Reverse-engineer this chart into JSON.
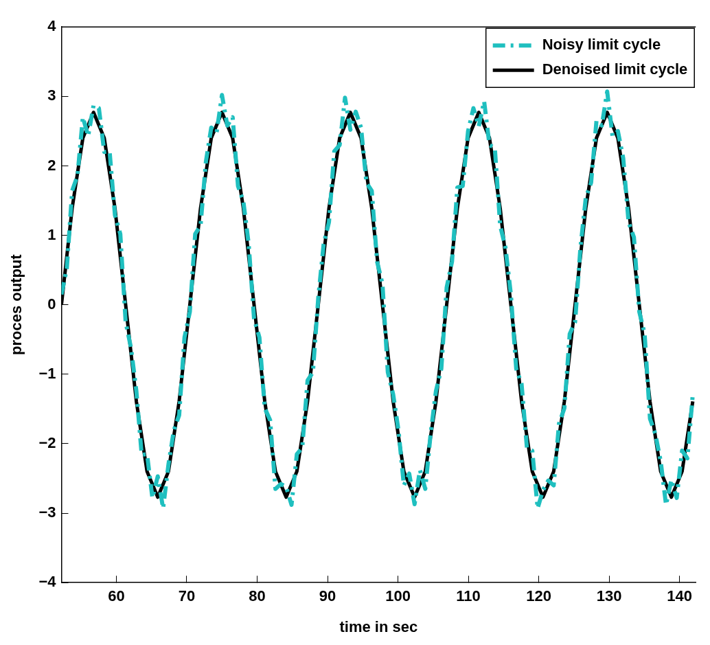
{
  "chart_data": {
    "type": "line",
    "xlabel": "time in sec",
    "ylabel": "proces output",
    "xlim": [
      52.2,
      142.3
    ],
    "xticks": [
      60,
      70,
      80,
      90,
      100,
      110,
      120,
      130,
      140
    ],
    "ylim": [
      -4,
      4
    ],
    "yticks": [
      -4,
      -3,
      -2,
      -1,
      0,
      1,
      2,
      3,
      4
    ],
    "grid": false,
    "legend": "top right",
    "marker": "none",
    "series": [
      {
        "name": "Noisy limit cycle",
        "color": "#1fbfbf",
        "line_style": "dashed",
        "x": [
          52.2,
          52.96,
          53.72,
          54.48,
          55.24,
          56,
          56.76,
          57.52,
          58.28,
          59.04,
          59.8,
          60.56,
          61.32,
          62.08,
          62.84,
          63.6,
          64.36,
          65.12,
          65.88,
          66.64,
          67.4,
          68.16,
          68.92,
          69.68,
          70.44,
          71.2,
          71.96,
          72.72,
          73.48,
          74.24,
          75,
          75.76,
          76.52,
          77.28,
          78.04,
          78.8,
          79.56,
          80.32,
          81.08,
          81.84,
          82.6,
          83.36,
          84.12,
          84.88,
          85.64,
          86.4,
          87.16,
          87.92,
          88.68,
          89.44,
          90.2,
          90.96,
          91.72,
          92.48,
          93.24,
          94,
          94.76,
          95.52,
          96.28,
          97.04,
          97.8,
          98.56,
          99.32,
          100.08,
          100.84,
          101.6,
          102.36,
          103.12,
          103.88,
          104.64,
          105.4,
          106.16,
          106.92,
          107.68,
          108.44,
          109.2,
          109.96,
          110.72,
          111.48,
          112.24,
          113,
          113.76,
          114.52,
          115.28,
          116.04,
          116.8,
          117.56,
          118.32,
          119.08,
          119.84,
          120.6,
          121.36,
          122.12,
          122.88,
          123.64,
          124.4,
          125.16,
          125.92,
          126.68,
          127.44,
          128.2,
          128.96,
          129.72,
          130.48,
          131.24,
          132,
          132.76,
          133.52,
          134.28,
          135.04,
          135.8,
          136.56,
          137.32,
          138.08,
          138.84,
          139.6,
          140.36,
          141.12,
          141.88
        ],
        "values": [
          0.15,
          0.52,
          1.64,
          1.86,
          2.7,
          2.43,
          2.87,
          2.83,
          2.2,
          2.21,
          1.29,
          1.02,
          -0.25,
          -0.62,
          -1.24,
          -2.16,
          -2.15,
          -2.78,
          -2.47,
          -2.93,
          -2.3,
          -1.81,
          -1.59,
          -0.47,
          -0.1,
          1.02,
          1.14,
          2.06,
          2.55,
          2.48,
          3.02,
          2.58,
          2.7,
          1.71,
          1.49,
          0.87,
          -0.2,
          -0.47,
          -1.49,
          -1.66,
          -2.65,
          -2.58,
          -2.62,
          -2.88,
          -2.15,
          -2.06,
          -1.09,
          -0.97,
          0.1,
          0.87,
          1.19,
          2.21,
          2.3,
          2.98,
          2.52,
          2.78,
          2.55,
          1.76,
          1.64,
          0.62,
          0.3,
          -0.97,
          -1.29,
          -1.81,
          -2.6,
          -2.43,
          -2.87,
          -2.38,
          -2.65,
          -1.86,
          -1.24,
          -0.92,
          0.25,
          0.62,
          1.69,
          1.71,
          2.5,
          2.83,
          2.57,
          2.93,
          2.3,
          2.26,
          1.14,
          0.82,
          0.15,
          -0.92,
          -1.14,
          -2.06,
          -2.1,
          -2.93,
          -2.67,
          -2.53,
          -2.6,
          -1.71,
          -1.49,
          -0.42,
          -0.25,
          0.82,
          1.54,
          1.76,
          2.65,
          2.58,
          3.07,
          2.43,
          2.5,
          2.11,
          1.19,
          0.97,
          -0.1,
          -0.42,
          -1.64,
          -1.86,
          -2.25,
          -2.88,
          -2.52,
          -2.78,
          -2.1,
          -2.21,
          -1.29
        ]
      },
      {
        "name": "Denoised limit cycle",
        "color": "#000000",
        "line_style": "solid",
        "x": [
          52.2,
          53.72,
          55.24,
          56.76,
          58.28,
          59.8,
          61.32,
          62.84,
          64.36,
          65.88,
          67.4,
          68.92,
          70.44,
          71.96,
          73.48,
          75,
          76.52,
          78.04,
          79.56,
          81.08,
          82.6,
          84.12,
          85.64,
          87.16,
          88.68,
          90.2,
          91.72,
          93.24,
          94.76,
          96.28,
          97.8,
          99.32,
          100.84,
          102.36,
          103.88,
          105.4,
          106.92,
          108.44,
          109.96,
          111.48,
          113,
          114.52,
          116.04,
          117.56,
          119.08,
          120.6,
          122.12,
          123.64,
          125.16,
          126.68,
          128.2,
          129.72,
          131.24,
          132.76,
          134.28,
          135.8,
          137.32,
          138.84,
          140.36,
          141.88
        ],
        "values": [
          0,
          1.39,
          2.4,
          2.77,
          2.4,
          1.39,
          0,
          -1.39,
          -2.4,
          -2.77,
          -2.4,
          -1.39,
          0,
          1.39,
          2.4,
          2.77,
          2.4,
          1.39,
          0,
          -1.39,
          -2.4,
          -2.77,
          -2.4,
          -1.39,
          0,
          1.39,
          2.4,
          2.77,
          2.4,
          1.39,
          0,
          -1.39,
          -2.4,
          -2.77,
          -2.4,
          -1.39,
          0,
          1.39,
          2.4,
          2.77,
          2.4,
          1.39,
          0,
          -1.39,
          -2.4,
          -2.77,
          -2.4,
          -1.39,
          0,
          1.39,
          2.4,
          2.77,
          2.4,
          1.39,
          0,
          -1.39,
          -2.4,
          -2.77,
          -2.4,
          -1.39
        ]
      }
    ]
  }
}
